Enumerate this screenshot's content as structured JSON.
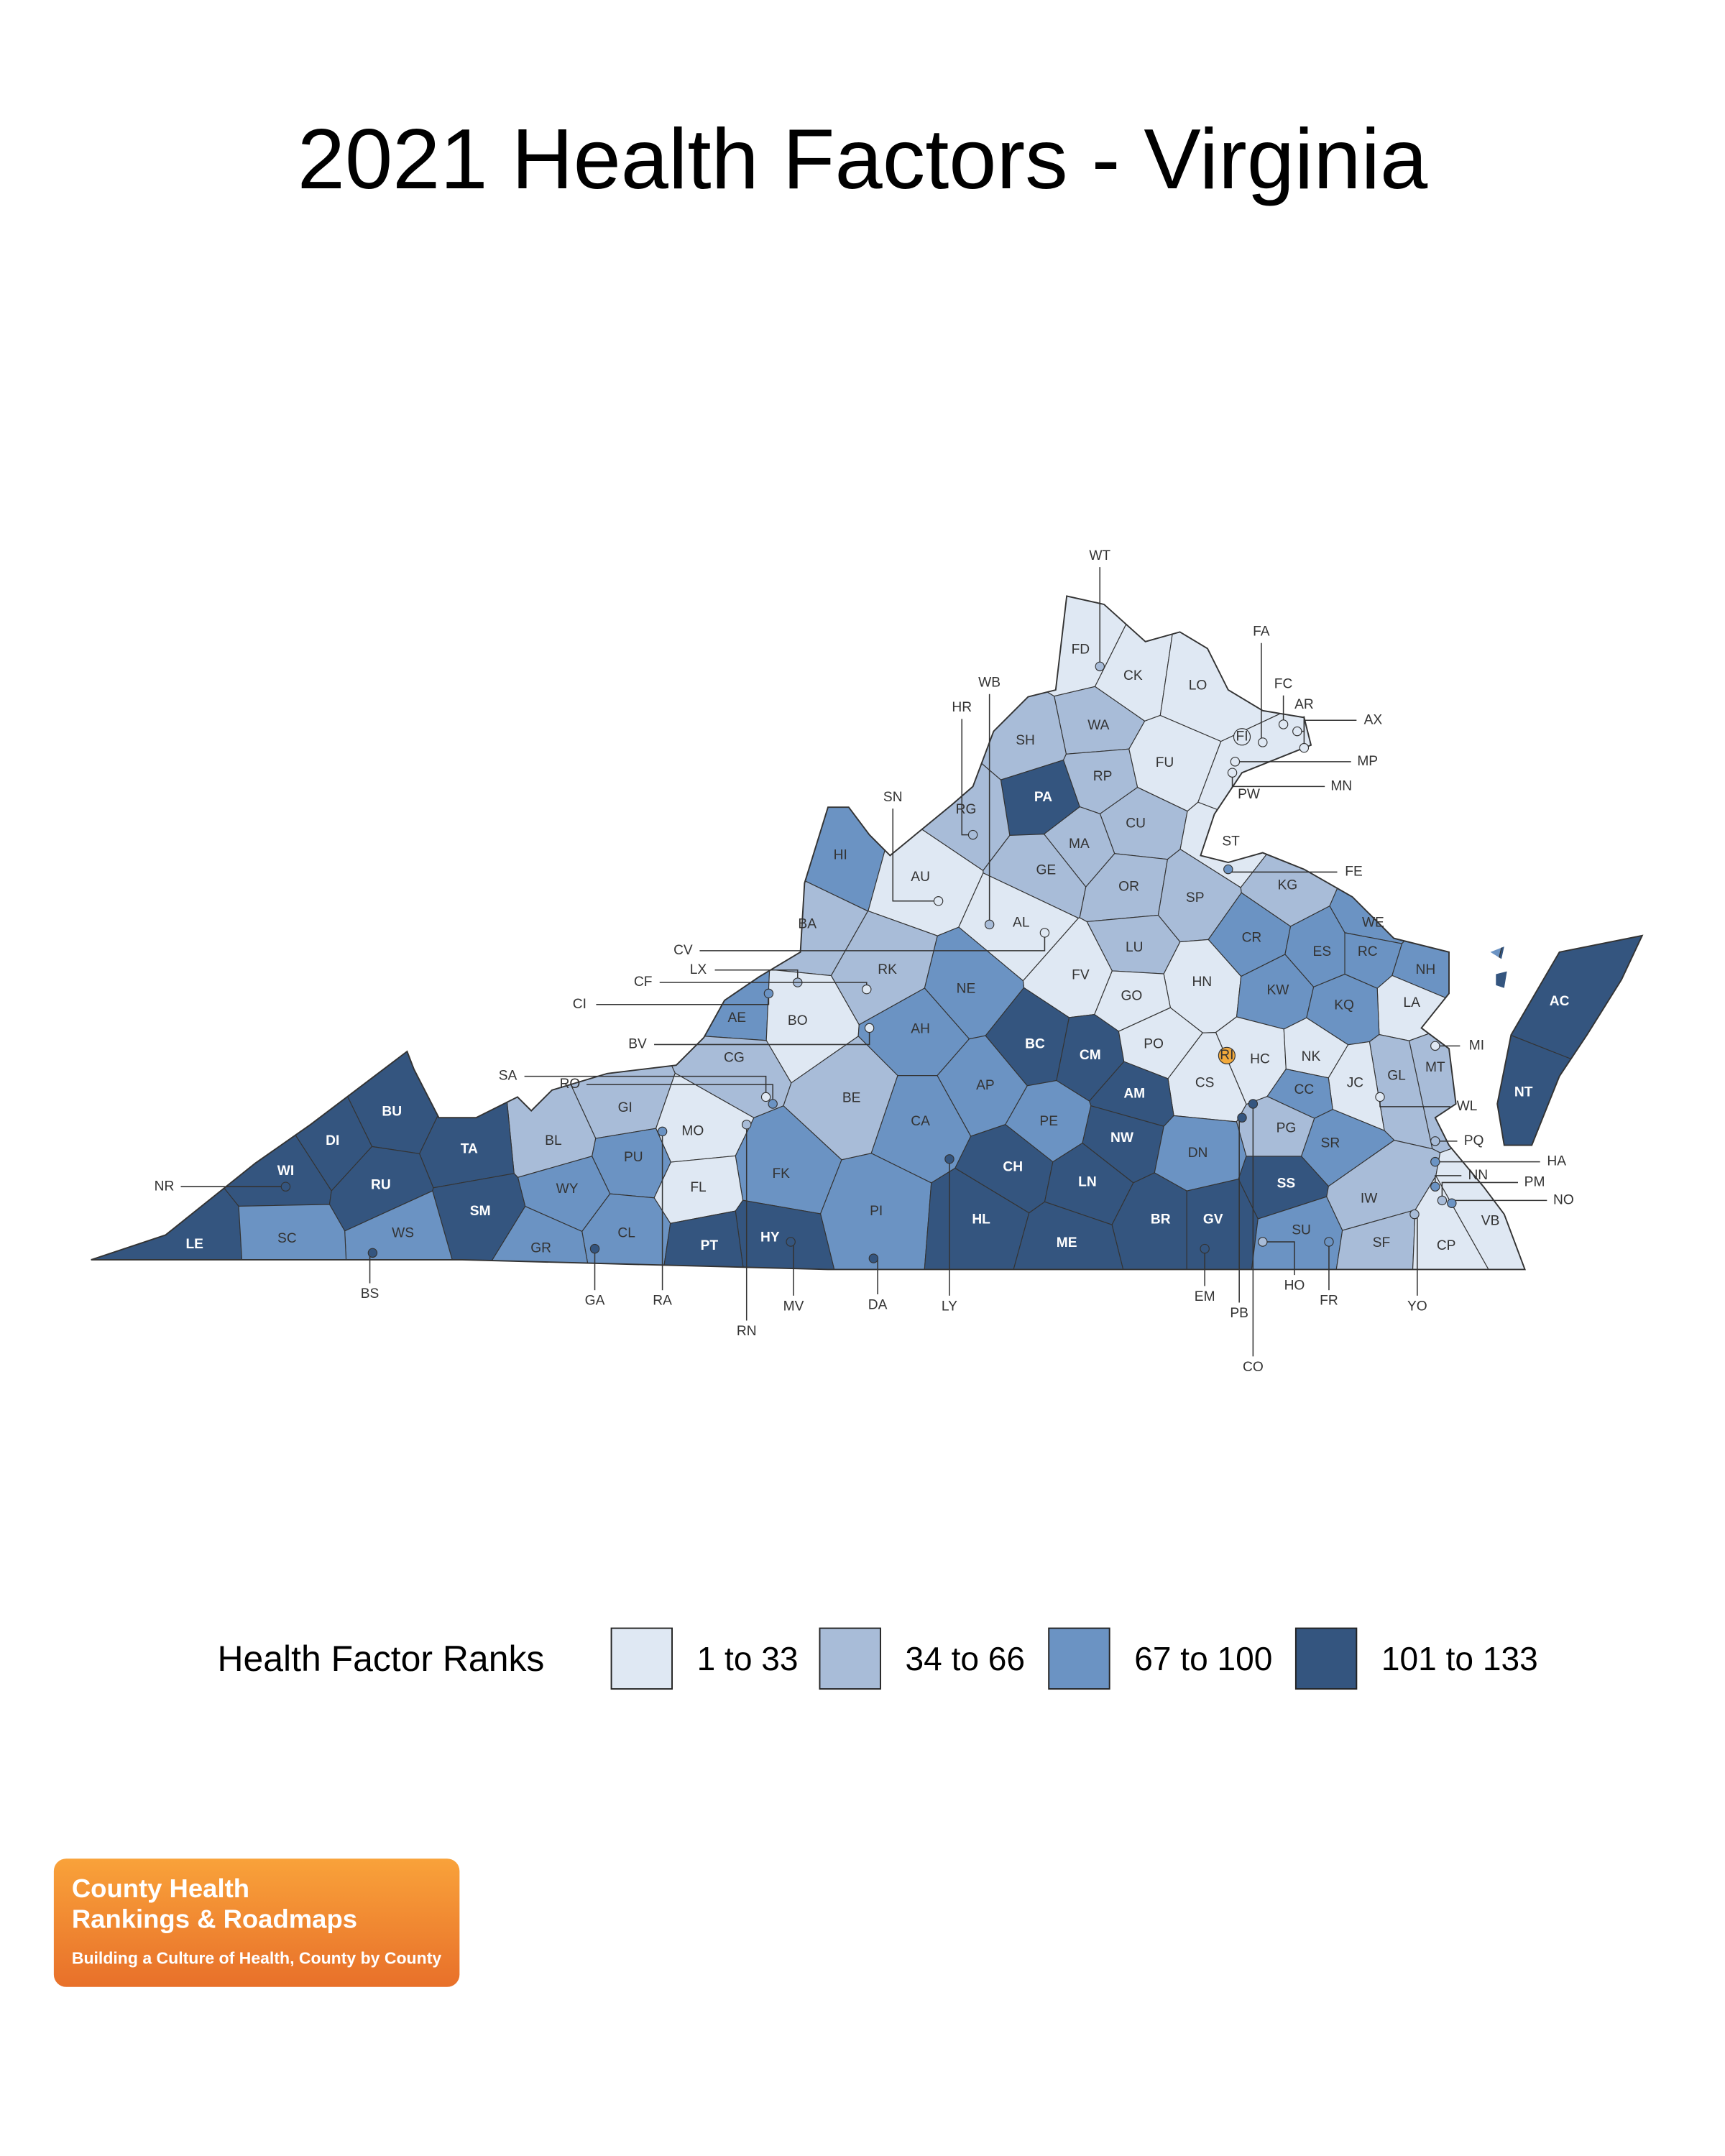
{
  "title": "2021 Health Factors - Virginia",
  "regions": [
    {
      "label": "FD",
      "color": "#dfe8f3"
    },
    {
      "label": "CK",
      "color": "#dfe8f3"
    },
    {
      "label": "LO",
      "color": "#dfe8f3"
    },
    {
      "label": "WA",
      "color": "#a8bcd8"
    },
    {
      "label": "SH",
      "color": "#a8bcd8"
    },
    {
      "label": "PA",
      "color": "#34557f"
    },
    {
      "label": "RP",
      "color": "#a8bcd8"
    },
    {
      "label": "FU",
      "color": "#dfe8f3"
    },
    {
      "label": "PW",
      "color": "#dfe8f3"
    },
    {
      "label": "RG",
      "color": "#a8bcd8"
    },
    {
      "label": "CU",
      "color": "#a8bcd8"
    },
    {
      "label": "MA",
      "color": "#a8bcd8"
    },
    {
      "label": "ST",
      "color": "#dfe8f3"
    },
    {
      "label": "HI",
      "color": "#6b93c3"
    },
    {
      "label": "GE",
      "color": "#a8bcd8"
    },
    {
      "label": "AU",
      "color": "#dfe8f3"
    },
    {
      "label": "OR",
      "color": "#a8bcd8"
    },
    {
      "label": "KG",
      "color": "#a8bcd8"
    },
    {
      "label": "SP",
      "color": "#a8bcd8"
    },
    {
      "label": "AL",
      "color": "#dfe8f3"
    },
    {
      "label": "BA",
      "color": "#a8bcd8"
    },
    {
      "label": "WE",
      "color": "#6b93c3"
    },
    {
      "label": "CR",
      "color": "#6b93c3"
    },
    {
      "label": "LU",
      "color": "#a8bcd8"
    },
    {
      "label": "ES",
      "color": "#6b93c3"
    },
    {
      "label": "RC",
      "color": "#6b93c3"
    },
    {
      "label": "NH",
      "color": "#6b93c3"
    },
    {
      "label": "RK",
      "color": "#a8bcd8"
    },
    {
      "label": "FV",
      "color": "#dfe8f3"
    },
    {
      "label": "HN",
      "color": "#dfe8f3"
    },
    {
      "label": "NE",
      "color": "#6b93c3"
    },
    {
      "label": "KW",
      "color": "#6b93c3"
    },
    {
      "label": "LA",
      "color": "#dfe8f3"
    },
    {
      "label": "AC",
      "color": "#34557f"
    },
    {
      "label": "GO",
      "color": "#dfe8f3"
    },
    {
      "label": "KQ",
      "color": "#6b93c3"
    },
    {
      "label": "AE",
      "color": "#6b93c3"
    },
    {
      "label": "BO",
      "color": "#dfe8f3"
    },
    {
      "label": "AH",
      "color": "#6b93c3"
    },
    {
      "label": "BC",
      "color": "#34557f"
    },
    {
      "label": "CM",
      "color": "#34557f"
    },
    {
      "label": "PO",
      "color": "#dfe8f3"
    },
    {
      "label": "HC",
      "color": "#dfe8f3"
    },
    {
      "label": "NK",
      "color": "#dfe8f3"
    },
    {
      "label": "CG",
      "color": "#a8bcd8"
    },
    {
      "label": "MT",
      "color": "#a8bcd8"
    },
    {
      "label": "GL",
      "color": "#a8bcd8"
    },
    {
      "label": "JC",
      "color": "#dfe8f3"
    },
    {
      "label": "AP",
      "color": "#6b93c3"
    },
    {
      "label": "CS",
      "color": "#dfe8f3"
    },
    {
      "label": "NT",
      "color": "#34557f"
    },
    {
      "label": "AM",
      "color": "#34557f"
    },
    {
      "label": "CC",
      "color": "#6b93c3"
    },
    {
      "label": "BU",
      "color": "#34557f"
    },
    {
      "label": "GI",
      "color": "#a8bcd8"
    },
    {
      "label": "BE",
      "color": "#a8bcd8"
    },
    {
      "label": "BL",
      "color": "#a8bcd8"
    },
    {
      "label": "DI",
      "color": "#34557f"
    },
    {
      "label": "CA",
      "color": "#6b93c3"
    },
    {
      "label": "PE",
      "color": "#6b93c3"
    },
    {
      "label": "PG",
      "color": "#a8bcd8"
    },
    {
      "label": "MO",
      "color": "#dfe8f3"
    },
    {
      "label": "TA",
      "color": "#34557f"
    },
    {
      "label": "NW",
      "color": "#34557f"
    },
    {
      "label": "SR",
      "color": "#6b93c3"
    },
    {
      "label": "DN",
      "color": "#6b93c3"
    },
    {
      "label": "PU",
      "color": "#6b93c3"
    },
    {
      "label": "CH",
      "color": "#34557f"
    },
    {
      "label": "WI",
      "color": "#34557f"
    },
    {
      "label": "FK",
      "color": "#6b93c3"
    },
    {
      "label": "LN",
      "color": "#34557f"
    },
    {
      "label": "RU",
      "color": "#34557f"
    },
    {
      "label": "SS",
      "color": "#34557f"
    },
    {
      "label": "WY",
      "color": "#6b93c3"
    },
    {
      "label": "FL",
      "color": "#dfe8f3"
    },
    {
      "label": "IW",
      "color": "#a8bcd8"
    },
    {
      "label": "SM",
      "color": "#34557f"
    },
    {
      "label": "PI",
      "color": "#6b93c3"
    },
    {
      "label": "HL",
      "color": "#34557f"
    },
    {
      "label": "BR",
      "color": "#34557f"
    },
    {
      "label": "GV",
      "color": "#34557f"
    },
    {
      "label": "VB",
      "color": "#dfe8f3"
    },
    {
      "label": "CL",
      "color": "#6b93c3"
    },
    {
      "label": "WS",
      "color": "#6b93c3"
    },
    {
      "label": "HY",
      "color": "#34557f"
    },
    {
      "label": "SU",
      "color": "#6b93c3"
    },
    {
      "label": "LE",
      "color": "#34557f"
    },
    {
      "label": "SC",
      "color": "#6b93c3"
    },
    {
      "label": "ME",
      "color": "#34557f"
    },
    {
      "label": "PT",
      "color": "#34557f"
    },
    {
      "label": "GR",
      "color": "#6b93c3"
    },
    {
      "label": "SF",
      "color": "#a8bcd8"
    },
    {
      "label": "CP",
      "color": "#dfe8f3"
    }
  ],
  "cities": [
    {
      "label": "WT",
      "color": "#a8bcd8"
    },
    {
      "label": "FA",
      "color": "#dfe8f3"
    },
    {
      "label": "FC",
      "color": "#dfe8f3"
    },
    {
      "label": "AR",
      "color": "#dfe8f3"
    },
    {
      "label": "AX",
      "color": "#dfe8f3"
    },
    {
      "label": "MP",
      "color": "#dfe8f3"
    },
    {
      "label": "MN",
      "color": "#dfe8f3"
    },
    {
      "label": "FI",
      "color": "#dfe8f3"
    },
    {
      "label": "WB",
      "color": "#a8bcd8"
    },
    {
      "label": "HR",
      "color": "#a8bcd8"
    },
    {
      "label": "SN",
      "color": "#dfe8f3"
    },
    {
      "label": "CV",
      "color": "#dfe8f3"
    },
    {
      "label": "LX",
      "color": "#a8bcd8"
    },
    {
      "label": "CF",
      "color": "#dfe8f3"
    },
    {
      "label": "CI",
      "color": "#6b93c3"
    },
    {
      "label": "BV",
      "color": "#dfe8f3"
    },
    {
      "label": "SA",
      "color": "#dfe8f3"
    },
    {
      "label": "RO",
      "color": "#6b93c3"
    },
    {
      "label": "FE",
      "color": "#6b93c3"
    },
    {
      "label": "MI",
      "color": "#dfe8f3"
    },
    {
      "label": "WL",
      "color": "#dfe8f3"
    },
    {
      "label": "PQ",
      "color": "#a8bcd8"
    },
    {
      "label": "HA",
      "color": "#6b93c3"
    },
    {
      "label": "NN",
      "color": "#6b93c3"
    },
    {
      "label": "PM",
      "color": "#a8bcd8"
    },
    {
      "label": "NO",
      "color": "#6b93c3"
    },
    {
      "label": "YO",
      "color": "#a8bcd8"
    },
    {
      "label": "FR",
      "color": "#6b93c3"
    },
    {
      "label": "HO",
      "color": "#a8bcd8"
    },
    {
      "label": "CO",
      "color": "#34557f"
    },
    {
      "label": "PB",
      "color": "#34557f"
    },
    {
      "label": "EM",
      "color": "#34557f"
    },
    {
      "label": "LY",
      "color": "#34557f"
    },
    {
      "label": "DA",
      "color": "#34557f"
    },
    {
      "label": "RN",
      "color": "#a8bcd8"
    },
    {
      "label": "MV",
      "color": "#34557f"
    },
    {
      "label": "RA",
      "color": "#6b93c3"
    },
    {
      "label": "GA",
      "color": "#34557f"
    },
    {
      "label": "BS",
      "color": "#34557f"
    },
    {
      "label": "NR",
      "color": "#34557f"
    },
    {
      "label": "RI",
      "color": "#f2a93b"
    }
  ],
  "legend": {
    "title": "Health Factor Ranks",
    "items": [
      {
        "label": "1 to 33",
        "color": "#dfe8f3"
      },
      {
        "label": "34 to 66",
        "color": "#a8bcd8"
      },
      {
        "label": "67 to 100",
        "color": "#6b93c3"
      },
      {
        "label": "101 to 133",
        "color": "#34557f"
      }
    ]
  },
  "logo": {
    "line1": "County Health",
    "line2": "Rankings & Roadmaps",
    "tagline": "Building a Culture of Health, County by County"
  }
}
